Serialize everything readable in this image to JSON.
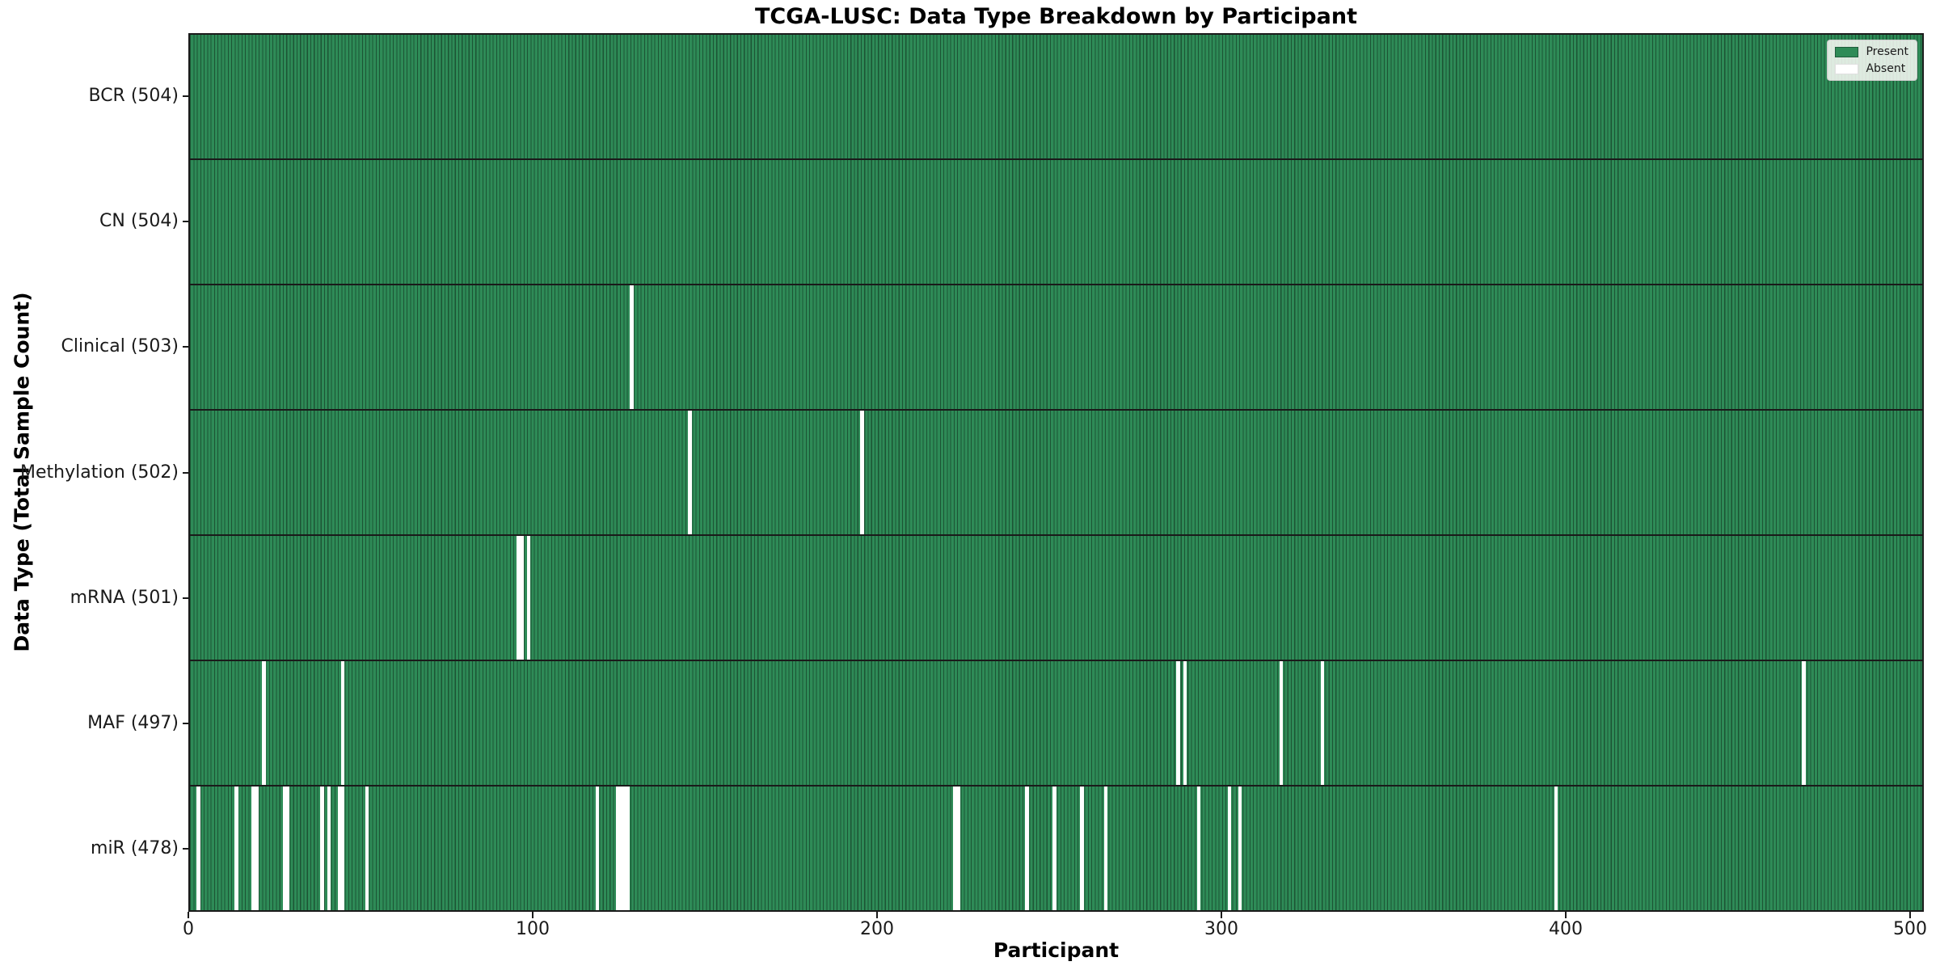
{
  "chart_data": {
    "type": "heatmap",
    "title": "TCGA-LUSC: Data Type Breakdown by Participant",
    "xlabel": "Participant",
    "ylabel": "Data Type (Total Sample Count)",
    "x_ticks": [
      0,
      100,
      200,
      300,
      400,
      500
    ],
    "xlim": [
      0,
      504
    ],
    "n_participants": 504,
    "grid": false,
    "legend_position": "upper right",
    "legend": [
      {
        "label": "Present",
        "color": "#2e8b57"
      },
      {
        "label": "Absent",
        "color": "#ffffff"
      }
    ],
    "rows": [
      {
        "data_type": "BCR",
        "tick_label": "BCR (504)",
        "present_count": 504,
        "absent_participants": []
      },
      {
        "data_type": "CN",
        "tick_label": "CN (504)",
        "present_count": 504,
        "absent_participants": []
      },
      {
        "data_type": "Clinical",
        "tick_label": "Clinical (503)",
        "present_count": 503,
        "absent_participants": [
          128
        ]
      },
      {
        "data_type": "Methylation",
        "tick_label": "Methylation (502)",
        "present_count": 502,
        "absent_participants": [
          145,
          195
        ]
      },
      {
        "data_type": "mRNA",
        "tick_label": "mRNA (501)",
        "present_count": 501,
        "absent_participants": [
          95,
          96,
          98
        ]
      },
      {
        "data_type": "MAF",
        "tick_label": "MAF (497)",
        "present_count": 497,
        "absent_participants": [
          21,
          44,
          287,
          289,
          317,
          329,
          469
        ]
      },
      {
        "data_type": "miR",
        "tick_label": "miR (478)",
        "present_count": 478,
        "absent_participants": [
          2,
          13,
          18,
          19,
          27,
          28,
          38,
          40,
          43,
          44,
          51,
          118,
          124,
          125,
          126,
          127,
          222,
          223,
          243,
          251,
          259,
          266,
          293,
          302,
          305,
          397
        ]
      }
    ],
    "colors": {
      "present": "#2e8b57",
      "bar_edge": "#1c5434",
      "absent": "#ffffff",
      "axis": "#1a1a1a",
      "background": "#ffffff"
    }
  }
}
